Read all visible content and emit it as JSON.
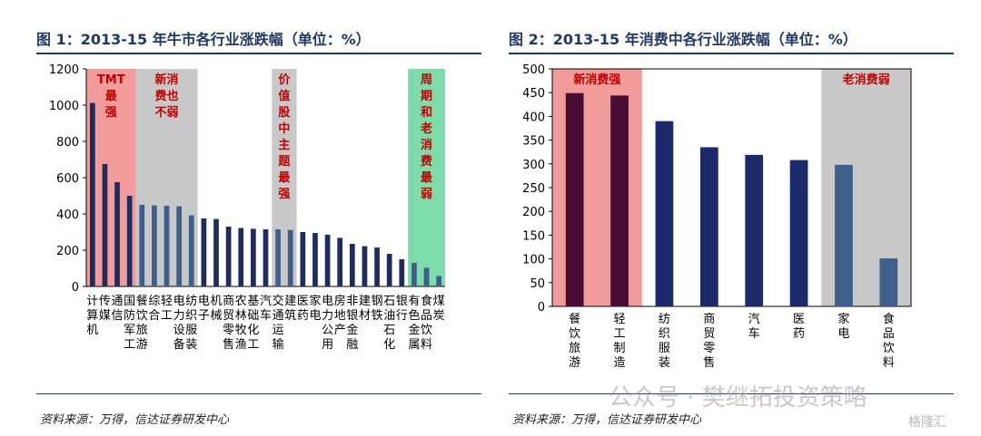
{
  "charts_text": {
    "left_title": "图 1：2013-15 年牛市各行业涨跌幅（单位：%）",
    "right_title": "图 2：2013-15 年消费中各行业涨跌幅（单位：%）",
    "left_source": "资料来源：万得，信达证券研发中心",
    "right_source": "资料来源：万得，信达证券研发中心",
    "watermark": "公众号 · 樊继拓投资策略",
    "brand": "格隆汇"
  },
  "colors": {
    "dark_navy": "#1f2d5e",
    "steel": "#3e5f8a",
    "dark_purple": "#4a0d33",
    "navy": "#1c2a6b",
    "hl_red": "#f19b9b",
    "hl_gray": "#c8c8c8",
    "hl_green": "#7ddcaa",
    "hl_text": "#c00000"
  },
  "chart_data": [
    {
      "type": "bar",
      "title": "图 1：2013-15 年牛市各行业涨跌幅（单位：%）",
      "ylim": [
        0,
        1200
      ],
      "yticks": [
        0,
        200,
        400,
        600,
        800,
        1000,
        1200
      ],
      "categories": [
        "计算机",
        "传媒",
        "通信",
        "国防军工",
        "餐饮旅游",
        "综合",
        "轻工制造",
        "电力设备",
        "纺织服装",
        "电子",
        "机械",
        "商贸零售",
        "农林牧渔",
        "基础化工",
        "汽车",
        "交通运输",
        "建筑",
        "医药",
        "家电",
        "电力",
        "房地产",
        "非银金融",
        "建材",
        "钢铁",
        "石油石化",
        "银行",
        "有色金属",
        "食品饮料",
        "煤炭"
      ],
      "label_columns": [
        [
          "计",
          "算",
          "机"
        ],
        [
          "传",
          "媒"
        ],
        [
          "通",
          "信"
        ],
        [
          "国",
          "防",
          "军",
          "工"
        ],
        [
          "餐",
          "饮",
          "旅",
          "游"
        ],
        [
          "综",
          "合"
        ],
        [
          "轻",
          "工"
        ],
        [
          "电",
          "力",
          "设",
          "备"
        ],
        [
          "纺",
          "织",
          "服",
          "装"
        ],
        [
          "电",
          "子"
        ],
        [
          "机",
          "械"
        ],
        [
          "商",
          "贸",
          "零",
          "售"
        ],
        [
          "农",
          "林",
          "牧",
          "渔"
        ],
        [
          "基",
          "础",
          "化",
          "工"
        ],
        [
          "汽",
          "车"
        ],
        [
          "交",
          "通",
          "运",
          "输"
        ],
        [
          "建",
          "筑"
        ],
        [
          "医",
          "药"
        ],
        [
          "家",
          "电"
        ],
        [
          "电",
          "力",
          "公",
          "用"
        ],
        [
          "房",
          "地",
          "产"
        ],
        [
          "非",
          "银",
          "金",
          "融"
        ],
        [
          "建",
          "材"
        ],
        [
          "钢",
          "铁"
        ],
        [
          "石",
          "油",
          "石",
          "化"
        ],
        [
          "银",
          "行"
        ],
        [
          "有",
          "色",
          "金",
          "属"
        ],
        [
          "食",
          "品",
          "饮",
          "料"
        ],
        [
          "煤",
          "炭"
        ]
      ],
      "values": [
        1012,
        675,
        575,
        500,
        450,
        447,
        445,
        442,
        392,
        375,
        372,
        330,
        322,
        318,
        315,
        315,
        312,
        300,
        295,
        285,
        268,
        235,
        222,
        215,
        180,
        150,
        130,
        103,
        58
      ],
      "bar_groups": [
        "dark",
        "dark",
        "dark",
        "dark",
        "steel",
        "steel",
        "steel",
        "steel",
        "steel",
        "dark",
        "dark",
        "dark",
        "dark",
        "dark",
        "dark",
        "steel",
        "steel",
        "dark",
        "dark",
        "dark",
        "dark",
        "dark",
        "dark",
        "dark",
        "dark",
        "dark",
        "steel",
        "steel",
        "steel"
      ],
      "highlights": [
        {
          "from": 0,
          "to": 3,
          "color": "hl_red",
          "label": [
            "TMT",
            "最",
            "强"
          ]
        },
        {
          "from": 4,
          "to": 8,
          "color": "hl_gray",
          "label": [
            "新消",
            "费也",
            "不弱"
          ]
        },
        {
          "from": 15,
          "to": 16,
          "color": "hl_gray",
          "label": [
            "价",
            "值",
            "股",
            "中",
            "主",
            "题",
            "最",
            "强"
          ]
        },
        {
          "from": 26,
          "to": 28,
          "color": "hl_green",
          "label": [
            "周",
            "期",
            "和",
            "老",
            "消",
            "费",
            "最",
            "弱"
          ]
        }
      ]
    },
    {
      "type": "bar",
      "title": "图 2：2013-15 年消费中各行业涨跌幅（单位：%）",
      "ylim": [
        0,
        500
      ],
      "yticks": [
        0,
        50,
        100,
        150,
        200,
        250,
        300,
        350,
        400,
        450,
        500
      ],
      "categories": [
        "餐饮旅游",
        "轻工制造",
        "纺织服装",
        "商贸零售",
        "汽车",
        "医药",
        "家电",
        "食品饮料"
      ],
      "label_columns": [
        [
          "餐",
          "饮",
          "旅",
          "游"
        ],
        [
          "轻",
          "工",
          "制",
          "造"
        ],
        [
          "纺",
          "织",
          "服",
          "装"
        ],
        [
          "商",
          "贸",
          "零",
          "售"
        ],
        [
          "汽",
          "车"
        ],
        [
          "医",
          "药"
        ],
        [
          "家",
          "电"
        ],
        [
          "食",
          "品",
          "饮",
          "料"
        ]
      ],
      "values": [
        449,
        444,
        390,
        335,
        319,
        308,
        298,
        101
      ],
      "bar_groups": [
        "purple",
        "purple",
        "navy",
        "navy",
        "navy",
        "navy",
        "steel",
        "steel"
      ],
      "highlights": [
        {
          "from": 0,
          "to": 1,
          "color": "hl_red",
          "label": [
            "新消费强"
          ]
        },
        {
          "from": 6,
          "to": 7,
          "color": "hl_gray",
          "label": [
            "老消费弱"
          ]
        }
      ]
    }
  ]
}
